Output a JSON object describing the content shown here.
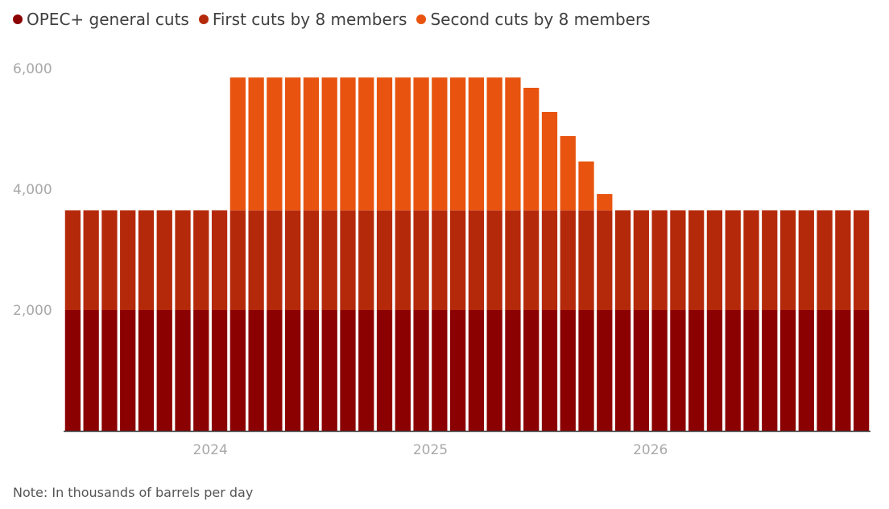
{
  "legend": [
    {
      "label": "OPEC+ general cuts",
      "color": "#8b0000"
    },
    {
      "label": "First cuts by 8 members",
      "color": "#b5290b"
    },
    {
      "label": "Second cuts by 8 members",
      "color": "#e8540f"
    }
  ],
  "note": "Note: In thousands of barrels per day",
  "chart_data": {
    "type": "bar",
    "stacked": true,
    "x_start": "2023-05",
    "x_end": "2026-12",
    "x_tick_labels": [
      "2024",
      "2025",
      "2026"
    ],
    "y_tick_labels": [
      "2,000",
      "4,000",
      "6,000"
    ],
    "ylim": [
      0,
      6000
    ],
    "y_ticks": [
      2000,
      4000,
      6000
    ],
    "categories": [
      "2023-05",
      "2023-06",
      "2023-07",
      "2023-08",
      "2023-09",
      "2023-10",
      "2023-11",
      "2023-12",
      "2024-01",
      "2024-02",
      "2024-03",
      "2024-04",
      "2024-05",
      "2024-06",
      "2024-07",
      "2024-08",
      "2024-09",
      "2024-10",
      "2024-11",
      "2024-12",
      "2025-01",
      "2025-02",
      "2025-03",
      "2025-04",
      "2025-05",
      "2025-06",
      "2025-07",
      "2025-08",
      "2025-09",
      "2025-10",
      "2025-11",
      "2025-12",
      "2026-01",
      "2026-02",
      "2026-03",
      "2026-04",
      "2026-05",
      "2026-06",
      "2026-07",
      "2026-08",
      "2026-09",
      "2026-10",
      "2026-11",
      "2026-12"
    ],
    "series": [
      {
        "name": "OPEC+ general cuts",
        "color": "#8b0000",
        "values": [
          2000,
          2000,
          2000,
          2000,
          2000,
          2000,
          2000,
          2000,
          2000,
          2000,
          2000,
          2000,
          2000,
          2000,
          2000,
          2000,
          2000,
          2000,
          2000,
          2000,
          2000,
          2000,
          2000,
          2000,
          2000,
          2000,
          2000,
          2000,
          2000,
          2000,
          2000,
          2000,
          2000,
          2000,
          2000,
          2000,
          2000,
          2000,
          2000,
          2000,
          2000,
          2000,
          2000,
          2000
        ]
      },
      {
        "name": "First cuts by 8 members",
        "color": "#b5290b",
        "values": [
          1650,
          1650,
          1650,
          1650,
          1650,
          1650,
          1650,
          1650,
          1650,
          1650,
          1650,
          1650,
          1650,
          1650,
          1650,
          1650,
          1650,
          1650,
          1650,
          1650,
          1650,
          1650,
          1650,
          1650,
          1650,
          1650,
          1650,
          1650,
          1650,
          1650,
          1650,
          1650,
          1650,
          1650,
          1650,
          1650,
          1650,
          1650,
          1650,
          1650,
          1650,
          1650,
          1650,
          1650
        ]
      },
      {
        "name": "Second cuts by 8 members",
        "color": "#e8540f",
        "values": [
          0,
          0,
          0,
          0,
          0,
          0,
          0,
          0,
          0,
          2200,
          2200,
          2200,
          2200,
          2200,
          2200,
          2200,
          2200,
          2200,
          2200,
          2200,
          2200,
          2200,
          2200,
          2200,
          2200,
          2030,
          1630,
          1230,
          810,
          270,
          0,
          0,
          0,
          0,
          0,
          0,
          0,
          0,
          0,
          0,
          0,
          0,
          0,
          0
        ]
      }
    ]
  }
}
